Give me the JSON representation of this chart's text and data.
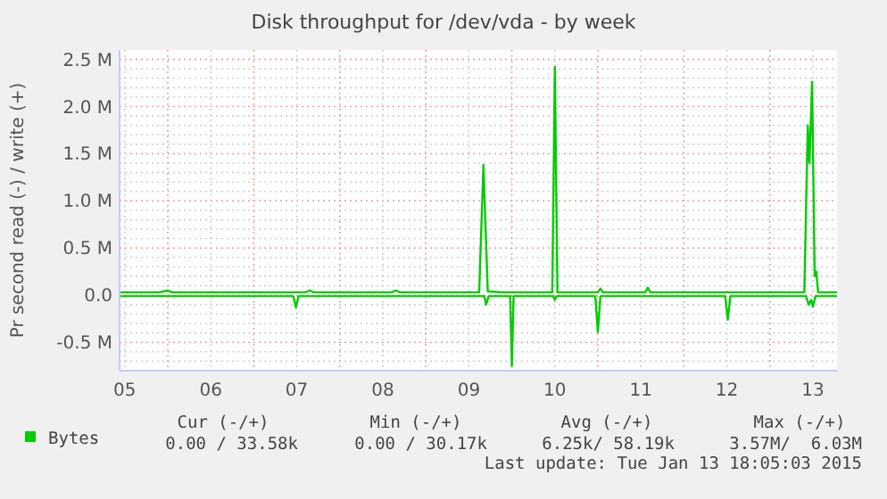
{
  "chart_data": {
    "type": "line",
    "title": "Disk throughput for /dev/vda - by week",
    "ylabel": "Pr second read (-) / write (+)",
    "xlim": [
      5.44,
      13.78
    ],
    "xticks": [
      {
        "value": 5.5,
        "label": "05"
      },
      {
        "value": 6.5,
        "label": "06"
      },
      {
        "value": 7.5,
        "label": "07"
      },
      {
        "value": 8.5,
        "label": "08"
      },
      {
        "value": 9.5,
        "label": "09"
      },
      {
        "value": 10.5,
        "label": "10"
      },
      {
        "value": 11.5,
        "label": "11"
      },
      {
        "value": 12.5,
        "label": "12"
      },
      {
        "value": 13.5,
        "label": "13"
      },
      {
        "value": 6,
        "label": null
      },
      {
        "value": 7,
        "label": null
      },
      {
        "value": 8,
        "label": null
      },
      {
        "value": 9,
        "label": null
      },
      {
        "value": 10,
        "label": null
      },
      {
        "value": 11,
        "label": null
      },
      {
        "value": 12,
        "label": null
      },
      {
        "value": 13,
        "label": null
      }
    ],
    "ylim": [
      -800000,
      2600000
    ],
    "yticks": [
      {
        "value": -500000,
        "label": "-0.5 M"
      },
      {
        "value": 0,
        "label": "0.0"
      },
      {
        "value": 500000,
        "label": "0.5 M"
      },
      {
        "value": 1000000,
        "label": "1.0 M"
      },
      {
        "value": 1500000,
        "label": "1.5 M"
      },
      {
        "value": 2000000,
        "label": "2.0 M"
      },
      {
        "value": 2500000,
        "label": "2.5 M"
      },
      {
        "value": -700000,
        "label": null
      },
      {
        "value": -600000,
        "label": null
      },
      {
        "value": -400000,
        "label": null
      },
      {
        "value": -300000,
        "label": null
      },
      {
        "value": -200000,
        "label": null
      },
      {
        "value": -100000,
        "label": null
      },
      {
        "value": 100000,
        "label": null
      },
      {
        "value": 200000,
        "label": null
      },
      {
        "value": 300000,
        "label": null
      },
      {
        "value": 400000,
        "label": null
      },
      {
        "value": 600000,
        "label": null
      },
      {
        "value": 700000,
        "label": null
      },
      {
        "value": 800000,
        "label": null
      },
      {
        "value": 900000,
        "label": null
      },
      {
        "value": 1100000,
        "label": null
      },
      {
        "value": 1200000,
        "label": null
      },
      {
        "value": 1300000,
        "label": null
      },
      {
        "value": 1400000,
        "label": null
      },
      {
        "value": 1600000,
        "label": null
      },
      {
        "value": 1700000,
        "label": null
      },
      {
        "value": 1800000,
        "label": null
      },
      {
        "value": 1900000,
        "label": null
      },
      {
        "value": 2100000,
        "label": null
      },
      {
        "value": 2200000,
        "label": null
      },
      {
        "value": 2300000,
        "label": null
      },
      {
        "value": 2400000,
        "label": null
      }
    ],
    "grid": true,
    "legend": "bottom left",
    "marker": "none",
    "line_style": "solid",
    "series": [
      {
        "name": "Bytes",
        "color": "#00cc00",
        "x": [
          5.44,
          5.9,
          6.0,
          6.05,
          7.6,
          7.65,
          7.7,
          8.6,
          8.65,
          8.7,
          9.62,
          9.67,
          9.72,
          9.9,
          10.47,
          10.5,
          10.53,
          11.0,
          11.03,
          11.06,
          11.55,
          11.58,
          11.61,
          12.4,
          13.4,
          13.44,
          13.46,
          13.49,
          13.52,
          13.54,
          13.56,
          13.78
        ],
        "values": [
          30000,
          30000,
          50000,
          30000,
          30000,
          50000,
          30000,
          30000,
          50000,
          30000,
          30000,
          1380000,
          40000,
          30000,
          30000,
          2420000,
          30000,
          30000,
          70000,
          30000,
          30000,
          80000,
          30000,
          30000,
          30000,
          1800000,
          1400000,
          2260000,
          200000,
          250000,
          30000,
          30000
        ]
      },
      {
        "color": "#00cc00",
        "x": [
          5.44,
          7.46,
          7.49,
          7.52,
          9.68,
          9.7,
          9.73,
          9.98,
          10.0,
          10.02,
          10.48,
          10.5,
          10.52,
          10.97,
          11.0,
          11.03,
          12.48,
          12.51,
          12.54,
          13.42,
          13.45,
          13.48,
          13.5,
          13.53,
          13.78
        ],
        "values": [
          -10000,
          -10000,
          -130000,
          -10000,
          -10000,
          -100000,
          -10000,
          -10000,
          -750000,
          -10000,
          -10000,
          -50000,
          -10000,
          -10000,
          -390000,
          -10000,
          -10000,
          -260000,
          -10000,
          -10000,
          -100000,
          -50000,
          -120000,
          -10000,
          -10000
        ]
      }
    ],
    "annotations": [
      "Cur (-/+)",
      "Min (-/+)",
      "Avg (-/+)",
      "Max (-/+)",
      "0.00 / 33.58k",
      "0.00 / 30.17k",
      "6.25k/ 58.19k",
      "3.57M/  6.03M",
      "Last update: Tue Jan 13 18:05:03 2015"
    ]
  }
}
